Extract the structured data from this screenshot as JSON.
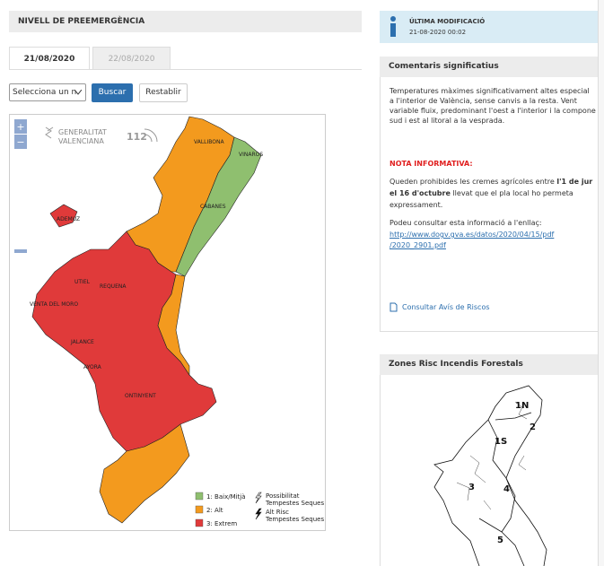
{
  "left_panel": {
    "title": "NIVELL DE PREEMERGÈNCIA",
    "tabs": [
      "21/08/2020",
      "22/08/2020"
    ],
    "select": "Selecciona un n",
    "buttons": [
      "Buscar",
      "Restablir"
    ],
    "map": {
      "zoom_in": "+",
      "zoom_out": "−",
      "logo": [
        "GENERALITAT",
        "VALENCIANA"
      ],
      "logo_112": "112",
      "places": [
        "VALLIBONA",
        "VINAROS",
        "CABANES",
        "ADEMUZ",
        "UTIEL",
        "REQUENA",
        "VENTA DEL MORO",
        "JALANCE",
        "AYORA",
        "ONTINYENT"
      ],
      "legend": [
        {
          "label": "1: Baix/Mitjà",
          "color": "#8fbf6f"
        },
        {
          "label": "2: Alt",
          "color": "#f39a1e"
        },
        {
          "label": "3: Extrem",
          "color": "#e03a3a"
        }
      ],
      "storm_legend": [
        [
          "Possibilitat",
          "Tempestes Seques"
        ],
        [
          "Alt Risc",
          "Tempestes Seques"
        ]
      ]
    }
  },
  "info": {
    "title": "ÚLTIMA MODIFICACIÓ",
    "date": "21-08-2020 00:02"
  },
  "comments": {
    "title": "Comentaris significatius",
    "paragraph_1": [
      "Temperatures màximes significativament altes especial",
      "a l'interior de València, sense canvis a la resta. Vent",
      "variable fluix, predominant l'oest a l'interior i la compone",
      "sud i est al litoral a la vesprada."
    ],
    "note_title": "NOTA INFORMATIVA:",
    "paragraph_2": [
      [
        "Queden prohibides les cremes agrícoles entre ",
        "l'1 de jur"
      ],
      [
        "el 16 d'octubre",
        " llevat que el pla local ho permeta"
      ],
      [
        "expressament."
      ]
    ],
    "paragraph_3": "Podeu consultar esta informació a l'enllaç:",
    "link": [
      "http://www.dogv.gva.es/datos/2020/04/15/pdf",
      "/2020_2901.pdf"
    ],
    "risk_link": "Consultar Avís de Riscos"
  },
  "zones": {
    "title": "Zones Risc Incendis Forestals",
    "labels": [
      "1N",
      "2",
      "1S",
      "3",
      "4",
      "5"
    ]
  }
}
